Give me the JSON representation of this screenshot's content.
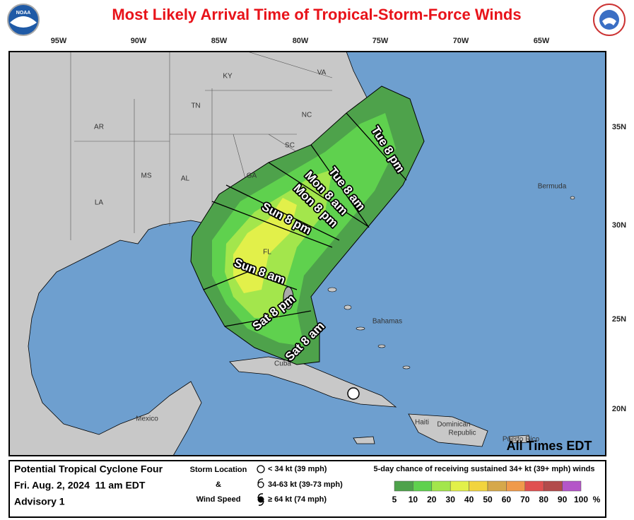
{
  "header": {
    "title": "Most Likely Arrival Time of Tropical-Storm-Force Winds"
  },
  "map": {
    "longitudes": [
      "95W",
      "90W",
      "85W",
      "80W",
      "75W",
      "70W",
      "65W"
    ],
    "latitudes": [
      "35N",
      "30N",
      "25N",
      "20N"
    ],
    "places": [
      "VA",
      "KY",
      "TN",
      "NC",
      "AR",
      "SC",
      "GA",
      "MS",
      "AL",
      "LA",
      "FL",
      "Bermuda",
      "Bahamas",
      "Cuba",
      "Mexico",
      "Haiti",
      "Dominican",
      "Republic",
      "Puerto Rico"
    ],
    "arrival_times": [
      "Sat 8 am",
      "Sat 8 pm",
      "Sun 8 am",
      "Sun 8 pm",
      "Mon 8 am",
      "Mon 8 pm",
      "Tue 8 am",
      "Tue 8 pm"
    ],
    "note": "All Times EDT"
  },
  "footer": {
    "storm_name": "Potential Tropical Cyclone Four",
    "date": "Fri. Aug. 2, 2024  11 am EDT",
    "advisory": "Advisory 1",
    "storm_legend": {
      "title_1": "Storm Location",
      "title_2": "&",
      "title_3": "Wind Speed",
      "items": [
        "< 34 kt (39 mph)",
        "34-63 kt (39-73 mph)",
        "≥ 64 kt (74 mph)"
      ]
    },
    "probability_legend": {
      "title": "5-day chance of receiving sustained 34+ kt (39+ mph) winds",
      "stops": [
        5,
        10,
        20,
        30,
        40,
        50,
        60,
        70,
        80,
        90,
        100
      ],
      "unit": "%",
      "colors": [
        "#4ea24b",
        "#5fd14e",
        "#a3e64c",
        "#e2f04a",
        "#f2d43e",
        "#d6a84a",
        "#f09a4a",
        "#e05050",
        "#b24a4a",
        "#b455c8"
      ]
    }
  }
}
